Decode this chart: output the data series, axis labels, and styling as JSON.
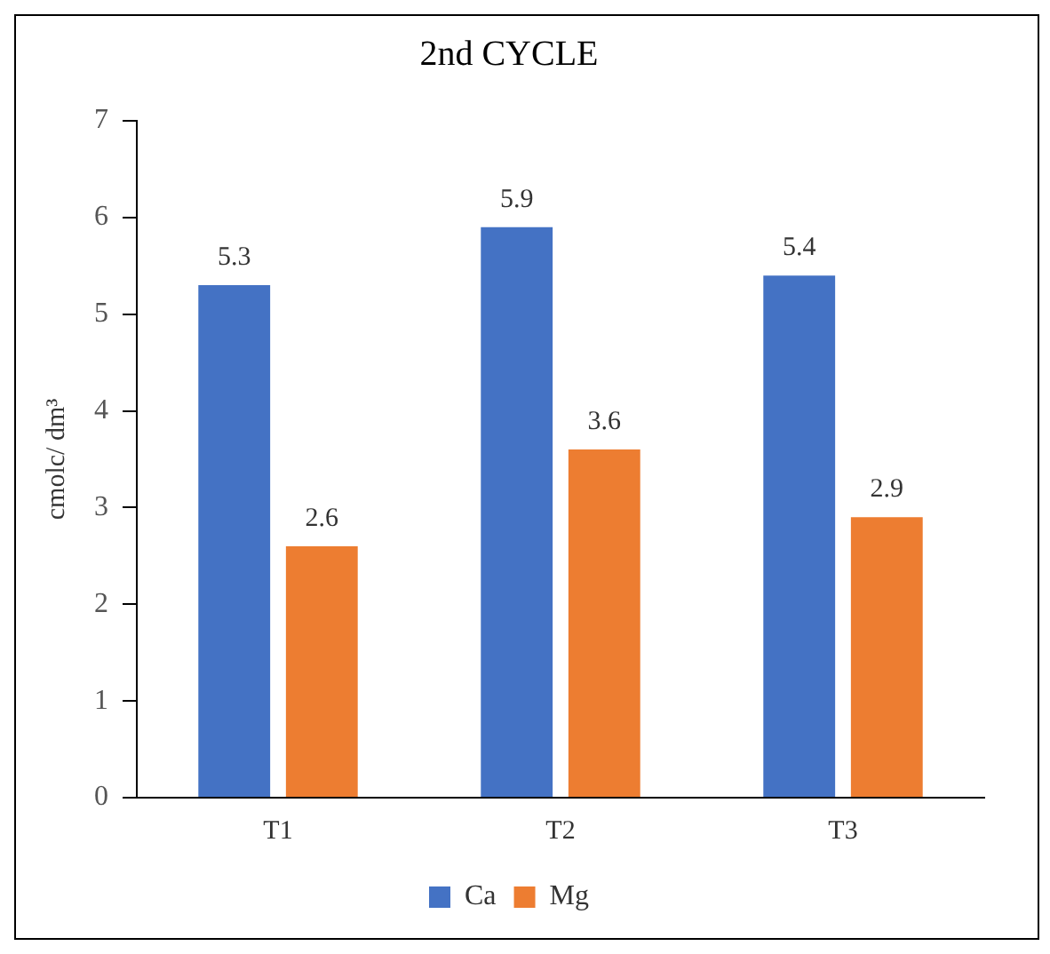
{
  "chart_data": {
    "type": "bar",
    "title": "2nd CYCLE",
    "ylabel": "cmolc/ dm³",
    "categories": [
      "T1",
      "T2",
      "T3"
    ],
    "series": [
      {
        "name": "Ca",
        "color": "#4472c4",
        "values": [
          5.3,
          5.9,
          5.4
        ]
      },
      {
        "name": "Mg",
        "color": "#ed7d31",
        "values": [
          2.6,
          3.6,
          2.9
        ]
      }
    ],
    "ylim": [
      0,
      7
    ],
    "yticks": [
      0,
      1,
      2,
      3,
      4,
      5,
      6,
      7
    ],
    "grid": false,
    "legend": "bottom",
    "data_labels": true
  }
}
